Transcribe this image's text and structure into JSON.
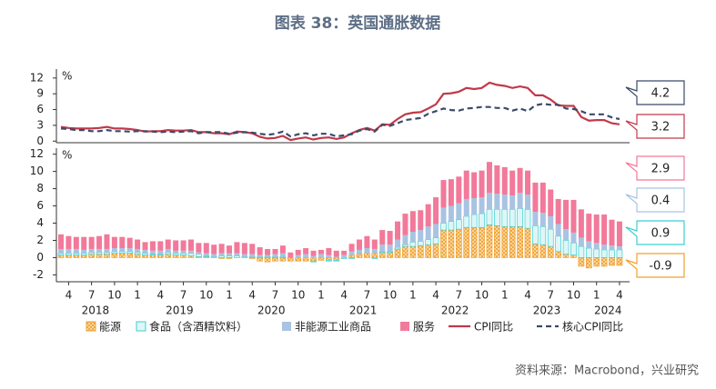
{
  "title": "图表 38：英国通胀数据",
  "source": "资料来源：Macrobond，兴业研究",
  "chart_data": [
    {
      "type": "line",
      "unit": "%",
      "ylim": [
        -0.3,
        13.7
      ],
      "yticks": [
        0,
        3,
        6,
        9,
        12
      ],
      "grid": false,
      "series": [
        {
          "name": "CPI同比",
          "color": "#c0394a",
          "dash": false,
          "values": [
            2.7,
            2.5,
            2.4,
            2.4,
            2.4,
            2.5,
            2.7,
            2.4,
            2.4,
            2.3,
            2.1,
            1.8,
            1.9,
            1.9,
            2.1,
            2.0,
            2.0,
            2.1,
            1.7,
            1.7,
            1.5,
            1.5,
            1.3,
            1.8,
            1.7,
            1.5,
            0.8,
            0.5,
            0.6,
            1.0,
            0.2,
            0.5,
            0.7,
            0.3,
            0.6,
            0.7,
            0.4,
            0.7,
            1.5,
            2.1,
            2.5,
            2.0,
            3.2,
            3.1,
            4.2,
            5.1,
            5.4,
            5.5,
            6.2,
            7.0,
            9.0,
            9.1,
            9.4,
            10.1,
            9.9,
            10.1,
            11.1,
            10.7,
            10.5,
            10.1,
            10.4,
            10.1,
            8.7,
            8.7,
            7.9,
            6.8,
            6.7,
            6.7,
            4.6,
            3.9,
            4.0,
            4.0,
            3.4,
            3.2
          ]
        },
        {
          "name": "核心CPI同比",
          "color": "#3a4a6a",
          "dash": true,
          "values": [
            2.4,
            2.3,
            2.1,
            2.1,
            1.9,
            1.9,
            2.1,
            1.9,
            1.9,
            1.8,
            1.9,
            1.9,
            1.8,
            1.7,
            1.8,
            1.7,
            1.8,
            1.9,
            1.5,
            1.7,
            1.7,
            1.7,
            1.4,
            1.6,
            1.7,
            1.6,
            1.4,
            1.2,
            1.4,
            1.8,
            0.9,
            1.3,
            1.5,
            1.1,
            1.4,
            1.4,
            0.9,
            1.1,
            1.3,
            2.0,
            2.3,
            1.8,
            3.1,
            2.9,
            3.4,
            4.0,
            4.2,
            4.4,
            5.2,
            5.7,
            6.2,
            5.9,
            5.8,
            6.2,
            6.3,
            6.5,
            6.5,
            6.3,
            6.3,
            5.8,
            6.2,
            5.7,
            6.8,
            7.1,
            6.9,
            6.9,
            6.2,
            6.1,
            5.7,
            5.1,
            5.1,
            5.1,
            4.5,
            4.2
          ]
        }
      ]
    },
    {
      "type": "stacked_bar",
      "unit": "%",
      "ylim": [
        -2.8,
        12.7
      ],
      "yticks": [
        -2,
        0,
        2,
        4,
        6,
        8,
        10,
        12
      ],
      "grid": false,
      "categories": [
        null,
        "4",
        null,
        null,
        "7",
        null,
        null,
        "10",
        null,
        null,
        "1",
        null,
        null,
        "4",
        null,
        null,
        "7",
        null,
        null,
        "10",
        null,
        null,
        "1",
        null,
        null,
        "4",
        null,
        null,
        "7",
        null,
        null,
        "10",
        null,
        null,
        "1",
        null,
        null,
        "4",
        null,
        null,
        "7",
        null,
        null,
        "10",
        null,
        null,
        "1",
        null,
        null,
        "4",
        null,
        null,
        "7",
        null,
        null,
        "10",
        null,
        null,
        "1",
        null,
        null,
        "4",
        null,
        null,
        "7",
        null,
        null,
        "10",
        null,
        null,
        "1",
        null,
        null,
        "4"
      ],
      "x_group_labels": [
        "2018",
        "2019",
        "2020",
        "2021",
        "2022",
        "2023",
        "2024"
      ],
      "series": [
        {
          "name": "能源",
          "color": "#f0a030",
          "values": [
            0.3,
            0.3,
            0.3,
            0.3,
            0.4,
            0.4,
            0.4,
            0.5,
            0.5,
            0.5,
            0.4,
            0.3,
            0.3,
            0.3,
            0.4,
            0.3,
            0.3,
            0.2,
            0.1,
            0.1,
            0.0,
            -0.1,
            -0.1,
            0.0,
            0.0,
            -0.1,
            -0.4,
            -0.5,
            -0.4,
            -0.4,
            -0.4,
            -0.4,
            -0.4,
            -0.4,
            -0.3,
            -0.3,
            -0.3,
            0.0,
            0.3,
            0.4,
            0.5,
            0.5,
            0.6,
            0.6,
            1.0,
            1.3,
            1.3,
            1.4,
            1.5,
            1.6,
            3.2,
            3.2,
            3.3,
            3.5,
            3.5,
            3.5,
            3.8,
            3.7,
            3.6,
            3.6,
            3.6,
            3.4,
            1.6,
            1.5,
            1.3,
            0.7,
            0.4,
            0.3,
            -1.0,
            -1.2,
            -1.0,
            -1.0,
            -0.9,
            -0.9
          ]
        },
        {
          "name": "食品（含酒精饮料）",
          "color": "#3ccfd0",
          "values": [
            0.2,
            0.2,
            0.2,
            0.2,
            0.2,
            0.2,
            0.2,
            0.2,
            0.2,
            0.2,
            0.2,
            0.2,
            0.1,
            0.1,
            0.2,
            0.2,
            0.2,
            0.3,
            0.3,
            0.1,
            0.1,
            0.2,
            0.2,
            0.2,
            0.1,
            0.1,
            0.1,
            0.1,
            0.1,
            0.1,
            0.0,
            0.0,
            0.0,
            -0.1,
            0.0,
            -0.1,
            -0.1,
            -0.1,
            -0.1,
            0.0,
            0.0,
            -0.1,
            0.1,
            0.1,
            0.2,
            0.2,
            0.5,
            0.5,
            0.6,
            0.7,
            0.8,
            1.0,
            1.1,
            1.3,
            1.5,
            1.6,
            1.8,
            1.9,
            2.0,
            2.0,
            2.1,
            2.2,
            2.1,
            2.1,
            2.0,
            1.8,
            1.6,
            1.4,
            1.3,
            1.1,
            1.0,
            0.9,
            0.9,
            0.9
          ]
        },
        {
          "name": "非能源工业商品",
          "color": "#a9c3e2",
          "values": [
            0.5,
            0.5,
            0.5,
            0.4,
            0.4,
            0.4,
            0.4,
            0.4,
            0.4,
            0.4,
            0.4,
            0.4,
            0.4,
            0.4,
            0.4,
            0.3,
            0.3,
            0.3,
            0.2,
            0.3,
            0.3,
            0.3,
            0.3,
            0.3,
            0.3,
            0.3,
            0.2,
            0.2,
            0.3,
            0.4,
            0.0,
            0.3,
            0.4,
            0.2,
            0.4,
            0.3,
            0.1,
            0.3,
            0.4,
            0.5,
            0.6,
            0.5,
            0.8,
            0.8,
            0.9,
            1.1,
            1.2,
            1.3,
            1.5,
            1.6,
            1.8,
            1.8,
            1.9,
            2.0,
            1.9,
            1.9,
            1.9,
            1.8,
            1.7,
            1.6,
            1.8,
            1.7,
            1.6,
            1.6,
            1.5,
            1.4,
            1.3,
            1.2,
            1.0,
            0.8,
            0.7,
            0.6,
            0.5,
            0.4
          ]
        },
        {
          "name": "服务",
          "color": "#f2799a",
          "values": [
            1.7,
            1.5,
            1.4,
            1.5,
            1.4,
            1.5,
            1.7,
            1.3,
            1.3,
            1.2,
            1.1,
            0.9,
            1.1,
            1.1,
            1.1,
            1.2,
            1.2,
            1.3,
            1.1,
            1.2,
            1.1,
            1.1,
            0.9,
            1.3,
            1.3,
            1.2,
            0.9,
            0.7,
            0.6,
            0.9,
            0.6,
            0.6,
            0.7,
            0.6,
            0.5,
            0.8,
            0.7,
            0.5,
            0.9,
            1.2,
            1.4,
            1.1,
            1.7,
            1.6,
            2.1,
            2.5,
            2.4,
            2.3,
            2.6,
            3.1,
            3.2,
            3.1,
            3.1,
            3.3,
            3.0,
            3.1,
            3.6,
            3.3,
            3.2,
            2.9,
            2.9,
            2.8,
            3.4,
            3.5,
            3.1,
            2.9,
            3.4,
            3.8,
            3.3,
            3.2,
            3.3,
            3.5,
            3.0,
            2.9
          ]
        }
      ]
    }
  ]
}
